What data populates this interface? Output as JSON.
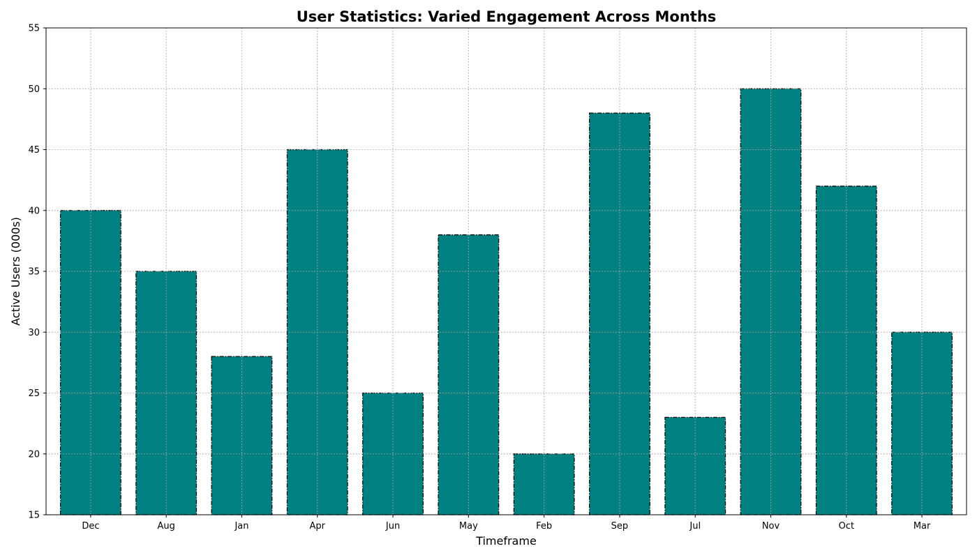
{
  "chart_data": {
    "type": "bar",
    "title": "User Statistics: Varied Engagement Across Months",
    "xlabel": "Timeframe",
    "ylabel": "Active Users (000s)",
    "categories": [
      "Dec",
      "Aug",
      "Jan",
      "Apr",
      "Jun",
      "May",
      "Feb",
      "Sep",
      "Jul",
      "Nov",
      "Oct",
      "Mar"
    ],
    "values": [
      40,
      35,
      28,
      45,
      25,
      38,
      20,
      48,
      23,
      50,
      42,
      30
    ],
    "ylim": [
      15,
      55
    ],
    "yticks": [
      15,
      20,
      25,
      30,
      35,
      40,
      45,
      50,
      55
    ],
    "grid": true,
    "bar_color": "#008080",
    "edge_color": "#000000"
  }
}
